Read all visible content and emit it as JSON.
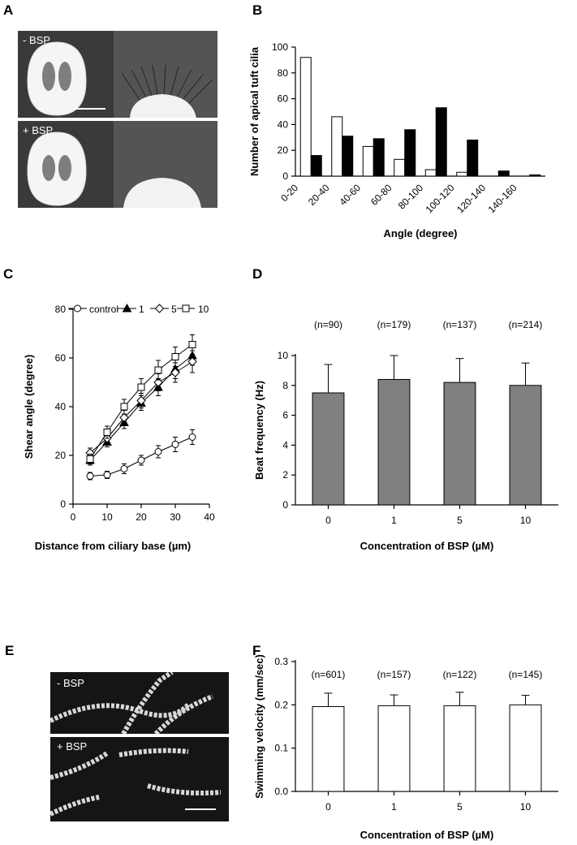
{
  "panels": {
    "A": {
      "label": "A",
      "top_text": "- BSP",
      "bottom_text": "+ BSP"
    },
    "B": {
      "label": "B"
    },
    "C": {
      "label": "C"
    },
    "D": {
      "label": "D"
    },
    "E": {
      "label": "E",
      "top_text": "- BSP",
      "bottom_text": "+ BSP"
    },
    "F": {
      "label": "F"
    }
  },
  "chart_data": [
    {
      "id": "B",
      "type": "bar",
      "xlabel": "Angle (degree)",
      "ylabel": "Number of apical tuft cilia",
      "ylim": [
        0,
        100
      ],
      "yticks": [
        0,
        20,
        40,
        60,
        80,
        100
      ],
      "categories": [
        "0-20",
        "20-40",
        "40-60",
        "60-80",
        "80-100",
        "100-120",
        "120-140",
        "140-160"
      ],
      "series": [
        {
          "values": [
            92,
            46,
            23,
            13,
            5,
            3,
            0,
            0
          ],
          "color": "#ffffff"
        },
        {
          "values": [
            16,
            31,
            29,
            36,
            53,
            28,
            4,
            1
          ],
          "color": "#000000"
        }
      ]
    },
    {
      "id": "C",
      "type": "line",
      "xlabel": "Distance from ciliary base (µm)",
      "ylabel": "Shear angle (degree)",
      "xlim": [
        0,
        40
      ],
      "ylim": [
        0,
        80
      ],
      "xticks": [
        0,
        10,
        20,
        30,
        40
      ],
      "yticks": [
        0,
        20,
        40,
        60,
        80
      ],
      "x": [
        5,
        10,
        15,
        20,
        25,
        30,
        35
      ],
      "series": [
        {
          "name": "control",
          "marker": "circle",
          "values": [
            11.5,
            12,
            14.5,
            18,
            21.5,
            24.5,
            27.5
          ],
          "errors": [
            1.5,
            1.5,
            2,
            2,
            2.5,
            3,
            3
          ]
        },
        {
          "name": "1",
          "marker": "triangle",
          "values": [
            18,
            25.5,
            33.5,
            41.5,
            48,
            55.5,
            61
          ],
          "errors": [
            2,
            2,
            2.5,
            3,
            3.5,
            4,
            4
          ]
        },
        {
          "name": "5",
          "marker": "diamond",
          "values": [
            21,
            27,
            35.5,
            42.5,
            50,
            54,
            58.5
          ],
          "errors": [
            2,
            2.5,
            3,
            3,
            3.5,
            4,
            4.5
          ]
        },
        {
          "name": "10",
          "marker": "square",
          "values": [
            18.5,
            29.5,
            40,
            48,
            55,
            60.5,
            65.5
          ],
          "errors": [
            2,
            2.5,
            3,
            3.5,
            4,
            4,
            4
          ]
        }
      ]
    },
    {
      "id": "D",
      "type": "bar",
      "xlabel": "Concentration of BSP (µM)",
      "ylabel": "Beat frequency (Hz)",
      "ylim": [
        0,
        10
      ],
      "yticks": [
        0,
        2,
        4,
        6,
        8,
        10
      ],
      "categories": [
        "0",
        "1",
        "5",
        "10"
      ],
      "values": [
        7.5,
        8.4,
        8.2,
        8.0
      ],
      "errors": [
        1.9,
        1.6,
        1.6,
        1.5
      ],
      "annotations": [
        "(n=90)",
        "(n=179)",
        "(n=137)",
        "(n=214)"
      ],
      "color": "#808080"
    },
    {
      "id": "F",
      "type": "bar",
      "xlabel": "Concentration of BSP (µM)",
      "ylabel": "Swimming velocity (mm/sec)",
      "ylim": [
        0,
        0.3
      ],
      "yticks": [
        "0.0",
        "0.1",
        "0.2",
        "0.3"
      ],
      "categories": [
        "0",
        "1",
        "5",
        "10"
      ],
      "values": [
        0.196,
        0.198,
        0.198,
        0.2
      ],
      "errors": [
        0.031,
        0.025,
        0.031,
        0.022
      ],
      "annotations": [
        "(n=601)",
        "(n=157)",
        "(n=122)",
        "(n=145)"
      ],
      "color": "#ffffff"
    }
  ]
}
